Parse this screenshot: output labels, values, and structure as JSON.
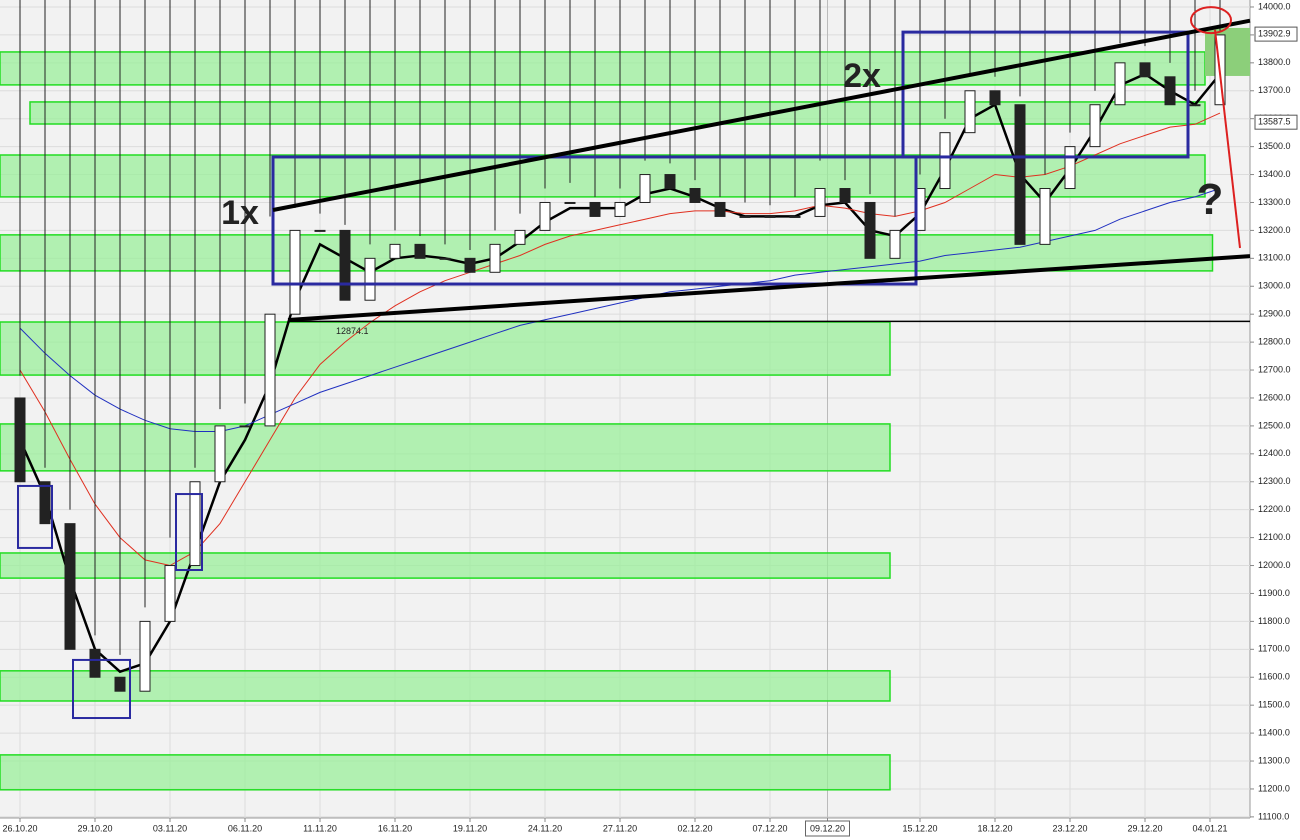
{
  "chart_data": {
    "type": "candlestick",
    "x": [
      0,
      1,
      2,
      3,
      4,
      5,
      6,
      7,
      8,
      9,
      10,
      11,
      12,
      13,
      14,
      15,
      16,
      17,
      18,
      19,
      20,
      21,
      22,
      23,
      24,
      25,
      26,
      27,
      28,
      29,
      30,
      31,
      32,
      33,
      34,
      35,
      36,
      37,
      38,
      39,
      40,
      41,
      42,
      43,
      44,
      45,
      46,
      47,
      48
    ],
    "open": [
      12600,
      12300,
      12150,
      11700,
      11600,
      11550,
      11800,
      12000,
      12300,
      12500,
      12500,
      12900,
      13200,
      13200,
      12950,
      13100,
      13150,
      13100,
      13100,
      13050,
      13150,
      13200,
      13300,
      13300,
      13250,
      13300,
      13400,
      13350,
      13300,
      13250,
      13250,
      13250,
      13250,
      13350,
      13300,
      13100,
      13200,
      13350,
      13550,
      13700,
      13650,
      13150,
      13350,
      13500,
      13650,
      13800,
      13750,
      13650,
      13650
    ],
    "high": [
      12680,
      12350,
      12200,
      11750,
      11680,
      11850,
      12100,
      12350,
      12560,
      12580,
      13250,
      13280,
      13260,
      13220,
      13150,
      13200,
      13180,
      13150,
      13130,
      13200,
      13260,
      13350,
      13370,
      13320,
      13350,
      13450,
      13440,
      13380,
      13320,
      13300,
      13290,
      13320,
      13450,
      13380,
      13330,
      13250,
      13400,
      13600,
      13760,
      13750,
      13680,
      13400,
      13550,
      13700,
      13870,
      13860,
      13800,
      13700,
      13910
    ],
    "low": {
      "value": 12874.1,
      "x": 10.72
    },
    "close": [
      12300,
      12150,
      11700,
      11600,
      11550,
      11800,
      12000,
      12300,
      12500,
      12500,
      12900,
      13200,
      13200,
      12950,
      13100,
      13150,
      13100,
      13100,
      13050,
      13150,
      13200,
      13300,
      13300,
      13250,
      13300,
      13400,
      13350,
      13300,
      13250,
      13250,
      13250,
      13250,
      13350,
      13300,
      13100,
      13200,
      13350,
      13550,
      13700,
      13650,
      13150,
      13350,
      13500,
      13650,
      13800,
      13750,
      13650,
      13650,
      13900
    ],
    "lines": [
      {
        "color": "#000000",
        "width": 2.5,
        "values": [
          12450,
          12250,
          11950,
          11700,
          11620,
          11650,
          11800,
          12050,
          12300,
          12450,
          12650,
          12950,
          13150,
          13100,
          13050,
          13100,
          13110,
          13100,
          13080,
          13100,
          13160,
          13230,
          13280,
          13280,
          13280,
          13330,
          13350,
          13320,
          13280,
          13250,
          13250,
          13250,
          13290,
          13300,
          13200,
          13180,
          13260,
          13420,
          13600,
          13650,
          13400,
          13300,
          13420,
          13560,
          13720,
          13760,
          13700,
          13650,
          13760
        ]
      },
      {
        "color": "#e03020",
        "width": 1,
        "values": [
          12700,
          12550,
          12380,
          12220,
          12100,
          12020,
          12000,
          12050,
          12150,
          12300,
          12450,
          12600,
          12720,
          12800,
          12870,
          12930,
          12980,
          13020,
          13050,
          13080,
          13110,
          13150,
          13180,
          13200,
          13220,
          13240,
          13260,
          13270,
          13270,
          13260,
          13260,
          13270,
          13290,
          13280,
          13260,
          13250,
          13270,
          13300,
          13350,
          13400,
          13390,
          13400,
          13430,
          13470,
          13510,
          13540,
          13570,
          13580,
          13620
        ]
      },
      {
        "color": "#2030c0",
        "width": 1,
        "values": [
          12850,
          12760,
          12680,
          12610,
          12560,
          12520,
          12490,
          12480,
          12480,
          12500,
          12540,
          12580,
          12620,
          12650,
          12680,
          12710,
          12740,
          12770,
          12800,
          12830,
          12860,
          12880,
          12900,
          12920,
          12940,
          12960,
          12980,
          12990,
          13000,
          13010,
          13020,
          13040,
          13050,
          13060,
          13070,
          13080,
          13090,
          13110,
          13120,
          13130,
          13140,
          13160,
          13180,
          13200,
          13240,
          13270,
          13300,
          13320,
          13350
        ]
      }
    ],
    "xlim": [
      -0.8,
      49.2
    ],
    "ylim": [
      11096,
      14025
    ],
    "grid": true,
    "xticks": [
      {
        "value": 0,
        "label": "26.10.20"
      },
      {
        "value": 3,
        "label": "29.10.20"
      },
      {
        "value": 6,
        "label": "03.11.20"
      },
      {
        "value": 9,
        "label": "06.11.20"
      },
      {
        "value": 12,
        "label": "11.11.20"
      },
      {
        "value": 15,
        "label": "16.11.20"
      },
      {
        "value": 18,
        "label": "19.11.20"
      },
      {
        "value": 21,
        "label": "24.11.20"
      },
      {
        "value": 24,
        "label": "27.11.20"
      },
      {
        "value": 27,
        "label": "02.12.20"
      },
      {
        "value": 30,
        "label": "07.12.20"
      },
      {
        "value": 32.3,
        "label": "09.12.20"
      },
      {
        "value": 36,
        "label": "15.12.20"
      },
      {
        "value": 39,
        "label": "18.12.20"
      },
      {
        "value": 42,
        "label": "23.12.20"
      },
      {
        "value": 45,
        "label": "29.12.20"
      },
      {
        "value": 47.6,
        "label": "04.01.21"
      }
    ],
    "yticks": [
      {
        "value": 11100,
        "label": "11100.0"
      },
      {
        "value": 11200,
        "label": "11200.0"
      },
      {
        "value": 11300,
        "label": "11300.0"
      },
      {
        "value": 11400,
        "label": "11400.0"
      },
      {
        "value": 11500,
        "label": "11500.0"
      },
      {
        "value": 11600,
        "label": "11600.0"
      },
      {
        "value": 11700,
        "label": "11700.0"
      },
      {
        "value": 11800,
        "label": "11800.0"
      },
      {
        "value": 11900,
        "label": "11900.0"
      },
      {
        "value": 12000,
        "label": "12000.0"
      },
      {
        "value": 12100,
        "label": "12100.0"
      },
      {
        "value": 12200,
        "label": "12200.0"
      },
      {
        "value": 12300,
        "label": "12300.0"
      },
      {
        "value": 12400,
        "label": "12400.0"
      },
      {
        "value": 12500,
        "label": "12500.0"
      },
      {
        "value": 12600,
        "label": "12600.0"
      },
      {
        "value": 12700,
        "label": "12700.0"
      },
      {
        "value": 12800,
        "label": "12800.0"
      },
      {
        "value": 12900,
        "label": "12900.0"
      },
      {
        "value": 13000,
        "label": "13000.0"
      },
      {
        "value": 13100,
        "label": "13100.0"
      },
      {
        "value": 13200,
        "label": "13200.0"
      },
      {
        "value": 13300,
        "label": "13300.0"
      },
      {
        "value": 13400,
        "label": "13400.0"
      },
      {
        "value": 13500,
        "label": "13500.0"
      },
      {
        "value": 13600,
        "label": "13600.0"
      },
      {
        "value": 13700,
        "label": "13700.0"
      },
      {
        "value": 13800,
        "label": "13800.0"
      },
      {
        "value": 13900,
        "label": "13900.0"
      },
      {
        "value": 14000,
        "label": "14000.0"
      }
    ],
    "zones": [
      {
        "x": [
          -0.8,
          47.4
        ],
        "y": [
          13721,
          13839
        ]
      },
      {
        "x": [
          0.4,
          47.4
        ],
        "y": [
          13581,
          13660
        ]
      },
      {
        "x": [
          -0.8,
          47.4
        ],
        "y": [
          13320,
          13470
        ]
      },
      {
        "x": [
          -0.8,
          47.7
        ],
        "y": [
          13055,
          13184
        ]
      },
      {
        "x": [
          -0.8,
          34.8
        ],
        "y": [
          12682,
          12872
        ]
      },
      {
        "x": [
          -0.8,
          34.8
        ],
        "y": [
          12339,
          12507
        ]
      },
      {
        "x": [
          -0.8,
          34.8
        ],
        "y": [
          11955,
          12045
        ]
      },
      {
        "x": [
          -0.8,
          34.8
        ],
        "y": [
          11515,
          11623
        ]
      },
      {
        "x": [
          -0.8,
          34.8
        ],
        "y": [
          11197,
          11322
        ]
      }
    ],
    "target_zone": {
      "x": [
        47.4,
        49.2
      ],
      "y": [
        13753,
        13925
      ]
    },
    "boxes": [
      {
        "x": [
          10.12,
          35.84
        ],
        "y": [
          13008,
          13463
        ]
      },
      {
        "x": [
          35.32,
          46.72
        ],
        "y": [
          13463,
          13910
        ]
      },
      {
        "x": [
          -0.08,
          1.28
        ],
        "y": [
          12063,
          12285
        ]
      },
      {
        "x": [
          6.24,
          7.28
        ],
        "y": [
          11984,
          12256
        ]
      },
      {
        "x": [
          2.12,
          4.4
        ],
        "y": [
          11454,
          11662
        ]
      }
    ],
    "trend_lines": [
      {
        "x": [
          10.12,
          49.2
        ],
        "y": [
          13273,
          13951
        ],
        "color": "#000000"
      },
      {
        "x": [
          10.72,
          49.2
        ],
        "y": [
          12879,
          13108
        ],
        "color": "#000000"
      },
      {
        "x": [
          47.8,
          48.8
        ],
        "y": [
          13918,
          13137
        ],
        "color": "#dd2020"
      }
    ],
    "last_price": 13902.9,
    "marked_price": 13587.5,
    "highlight": {
      "x": 47.64,
      "y": 13953
    },
    "annotations": [
      {
        "text": "1x",
        "x": 8.8,
        "y": 13255,
        "color": "#3a3aaa"
      },
      {
        "text": "2x",
        "x": 33.68,
        "y": 13746,
        "color": "#3a3aaa"
      },
      {
        "text": "?",
        "x": 47.6,
        "y": 13300,
        "color": "#dd2020"
      }
    ]
  }
}
